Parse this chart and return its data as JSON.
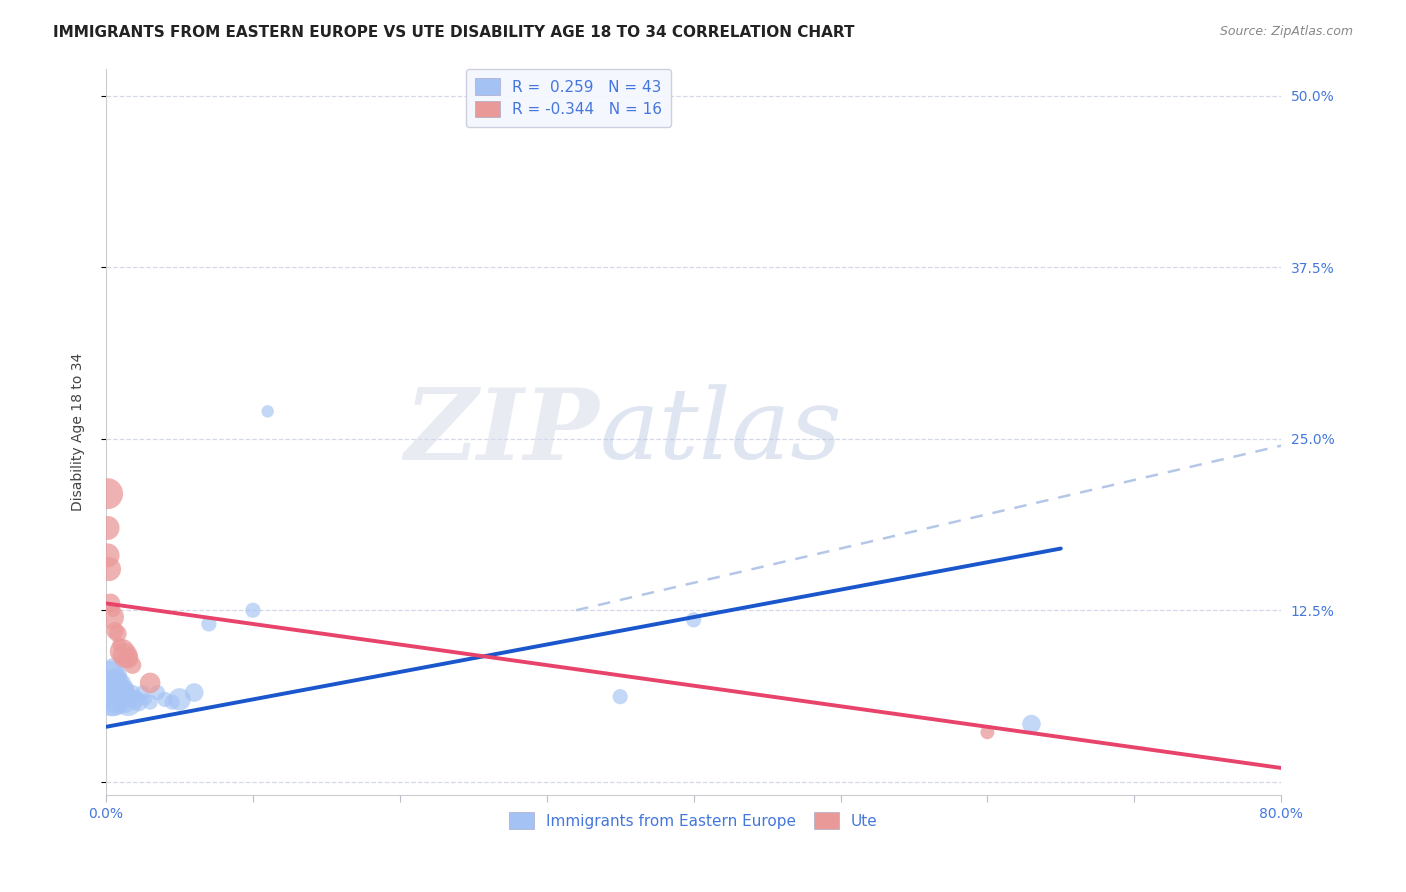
{
  "title": "IMMIGRANTS FROM EASTERN EUROPE VS UTE DISABILITY AGE 18 TO 34 CORRELATION CHART",
  "source": "Source: ZipAtlas.com",
  "ylabel": "Disability Age 18 to 34",
  "xlim": [
    0.0,
    0.8
  ],
  "ylim": [
    -0.01,
    0.52
  ],
  "yticks": [
    0.0,
    0.125,
    0.25,
    0.375,
    0.5
  ],
  "ytick_labels": [
    "",
    "12.5%",
    "25.0%",
    "37.5%",
    "50.0%"
  ],
  "blue_color": "#a4c2f4",
  "pink_color": "#ea9999",
  "blue_line_color": "#1a56cc",
  "pink_line_color": "#e8436a",
  "dashed_line_color": "#b4c7e7",
  "r_blue": 0.259,
  "n_blue": 43,
  "r_pink": -0.344,
  "n_pink": 16,
  "background_color": "#ffffff",
  "grid_color": "#d0d4e8",
  "blue_points_x": [
    0.001,
    0.002,
    0.003,
    0.003,
    0.004,
    0.004,
    0.005,
    0.005,
    0.005,
    0.006,
    0.006,
    0.006,
    0.007,
    0.007,
    0.008,
    0.008,
    0.009,
    0.009,
    0.01,
    0.01,
    0.011,
    0.012,
    0.013,
    0.014,
    0.015,
    0.016,
    0.018,
    0.02,
    0.022,
    0.025,
    0.027,
    0.03,
    0.035,
    0.04,
    0.045,
    0.05,
    0.06,
    0.07,
    0.1,
    0.11,
    0.35,
    0.4,
    0.63
  ],
  "blue_points_y": [
    0.068,
    0.072,
    0.065,
    0.08,
    0.062,
    0.075,
    0.058,
    0.068,
    0.082,
    0.065,
    0.072,
    0.058,
    0.06,
    0.075,
    0.065,
    0.07,
    0.062,
    0.078,
    0.065,
    0.072,
    0.068,
    0.06,
    0.065,
    0.068,
    0.058,
    0.062,
    0.065,
    0.06,
    0.058,
    0.065,
    0.06,
    0.058,
    0.065,
    0.06,
    0.058,
    0.06,
    0.065,
    0.115,
    0.125,
    0.27,
    0.062,
    0.118,
    0.042
  ],
  "pink_points_x": [
    0.001,
    0.001,
    0.002,
    0.003,
    0.004,
    0.005,
    0.006,
    0.008,
    0.009,
    0.011,
    0.013,
    0.015,
    0.018,
    0.03,
    0.6,
    0.001
  ],
  "pink_points_y": [
    0.185,
    0.21,
    0.155,
    0.13,
    0.12,
    0.125,
    0.11,
    0.108,
    0.1,
    0.095,
    0.092,
    0.09,
    0.085,
    0.072,
    0.036,
    0.165
  ],
  "blue_line_x0": 0.0,
  "blue_line_x1": 0.65,
  "blue_line_y0": 0.04,
  "blue_line_y1": 0.17,
  "pink_line_x0": 0.0,
  "pink_line_x1": 0.8,
  "pink_line_y0": 0.13,
  "pink_line_y1": 0.01,
  "dash_line_x0": 0.32,
  "dash_line_x1": 0.8,
  "dash_line_y0": 0.125,
  "dash_line_y1": 0.245,
  "watermark_zip": "ZIP",
  "watermark_atlas": "atlas",
  "title_fontsize": 11,
  "axis_label_fontsize": 10,
  "tick_fontsize": 10,
  "legend_fontsize": 11,
  "tick_color": "#4477dd"
}
